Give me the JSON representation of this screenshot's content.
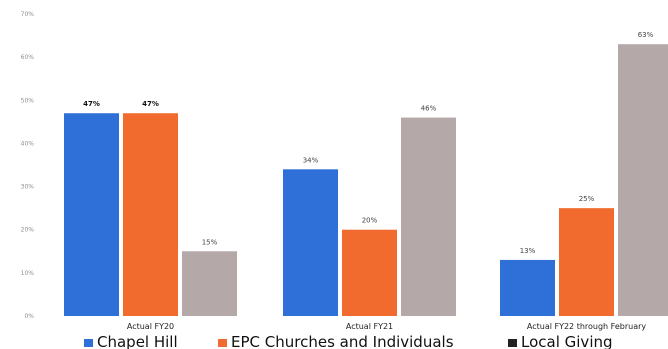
{
  "chart_data": {
    "type": "bar",
    "categories": [
      "Actual FY20",
      "Actual FY21",
      "Actual FY22 through February"
    ],
    "series": [
      {
        "name": "Chapel Hill",
        "color": "#2e6fd8",
        "values": [
          47,
          34,
          13
        ],
        "labels": [
          "47%",
          "34%",
          "13%"
        ]
      },
      {
        "name": "EPC Churches and Individuals",
        "color": "#f26b2e",
        "values": [
          47,
          20,
          25
        ],
        "labels": [
          "47%",
          "20%",
          "25%"
        ]
      },
      {
        "name": "Local Giving",
        "color": "#b5a8a8",
        "values": [
          15,
          46,
          63
        ],
        "labels": [
          "15%",
          "46%",
          "63%"
        ]
      }
    ],
    "ylim": [
      0,
      70
    ],
    "yticks": [
      "0%",
      "10%",
      "20%",
      "30%",
      "40%",
      "50%",
      "60%",
      "70%"
    ],
    "grid": false,
    "legend": "bottom",
    "legend_markers": [
      "square",
      "square",
      "square"
    ]
  }
}
